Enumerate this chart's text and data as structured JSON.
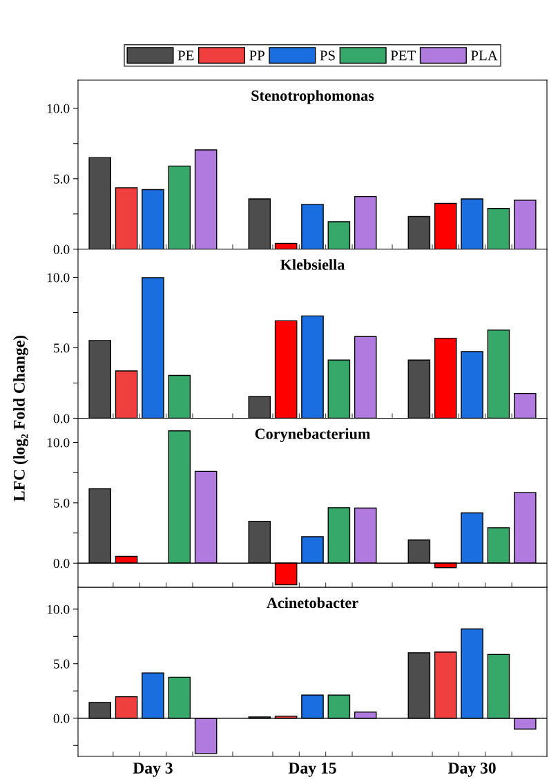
{
  "chart_data": [
    {
      "type": "bar",
      "title": "Stenotrophomonas",
      "ylabel": "LFC (log₂ Fold Change)",
      "categories": [
        null,
        null,
        null
      ],
      "ylim": [
        0,
        12
      ],
      "yticks": [
        {
          "value": 0,
          "label": "0.0"
        },
        {
          "value": 2.5,
          "label": null
        },
        {
          "value": 5,
          "label": "5.0"
        },
        {
          "value": 7.5,
          "label": null
        },
        {
          "value": 10,
          "label": "10.0"
        }
      ],
      "tick_labels": "y",
      "legend": "top",
      "grid": false,
      "series": [
        {
          "name": "PE",
          "color": "#4d4d4d",
          "values": [
            6.5,
            3.57,
            2.32
          ]
        },
        {
          "name": "PP",
          "color": "#ef3f3f",
          "colors": [
            "#ef3f3f",
            "#ff0000",
            "#ff0000"
          ],
          "values": [
            4.36,
            0.41,
            3.25
          ]
        },
        {
          "name": "PS",
          "color": "#1a6ee0",
          "values": [
            4.23,
            3.18,
            3.57
          ]
        },
        {
          "name": "PET",
          "color": "#36a86a",
          "values": [
            5.9,
            1.95,
            2.89
          ]
        },
        {
          "name": "PLA",
          "color": "#b07ade",
          "values": [
            7.05,
            3.73,
            3.48
          ]
        }
      ]
    },
    {
      "type": "bar",
      "title": "Klebsiella",
      "categories": [
        null,
        null,
        null
      ],
      "ylim": [
        0,
        12
      ],
      "yticks": [
        {
          "value": 0,
          "label": "0.0"
        },
        {
          "value": 2.5,
          "label": null
        },
        {
          "value": 5,
          "label": "5.0"
        },
        {
          "value": 7.5,
          "label": null
        },
        {
          "value": 10,
          "label": "10.0"
        }
      ],
      "tick_labels": "y",
      "grid": false,
      "series": [
        {
          "color": "#4d4d4d",
          "values": [
            5.52,
            1.55,
            4.13
          ]
        },
        {
          "color": "#ef3f3f",
          "colors": [
            "#ef3f3f",
            "#ff0000",
            "#ff0000"
          ],
          "values": [
            3.36,
            6.92,
            5.68
          ]
        },
        {
          "color": "#1a6ee0",
          "values": [
            9.98,
            7.26,
            4.73
          ]
        },
        {
          "color": "#36a86a",
          "values": [
            3.04,
            4.13,
            6.26
          ]
        },
        {
          "color": "#b07ade",
          "values": [
            null,
            5.8,
            1.76
          ]
        }
      ]
    },
    {
      "type": "bar",
      "title": "Corynebacterium",
      "categories": [
        null,
        null,
        null
      ],
      "ylim": [
        -2,
        12
      ],
      "yticks": [
        {
          "value": 0,
          "label": "0.0"
        },
        {
          "value": 2.5,
          "label": null
        },
        {
          "value": 5,
          "label": "5.0"
        },
        {
          "value": 7.5,
          "label": null
        },
        {
          "value": 10,
          "label": "10.0"
        }
      ],
      "tick_labels": "y",
      "grid": false,
      "ref_lines": [
        {
          "axis": "y",
          "value": 0,
          "color": "#000000"
        }
      ],
      "series": [
        {
          "color": "#4d4d4d",
          "values": [
            6.16,
            3.47,
            1.92
          ]
        },
        {
          "color": "#ef3f3f",
          "colors": [
            "#ff0000",
            "#ff0000",
            "#ff0000"
          ],
          "values": [
            0.56,
            -1.79,
            -0.37
          ]
        },
        {
          "color": "#1a6ee0",
          "values": [
            null,
            2.19,
            4.16
          ]
        },
        {
          "color": "#36a86a",
          "values": [
            10.96,
            4.59,
            2.93
          ]
        },
        {
          "color": "#b07ade",
          "values": [
            7.6,
            4.56,
            5.84
          ]
        }
      ]
    },
    {
      "type": "bar",
      "title": "Acinetobacter",
      "categories": [
        "Day 3",
        "Day 15",
        "Day 30"
      ],
      "ylim": [
        -3.5,
        12
      ],
      "yticks": [
        {
          "value": -2.5,
          "label": null
        },
        {
          "value": 0,
          "label": "0.0"
        },
        {
          "value": 2.5,
          "label": null
        },
        {
          "value": 5,
          "label": "5.0"
        },
        {
          "value": 7.5,
          "label": null
        },
        {
          "value": 10,
          "label": "10.0"
        }
      ],
      "grid": false,
      "ref_lines": [
        {
          "axis": "y",
          "value": 0,
          "color": "#000000"
        }
      ],
      "series": [
        {
          "color": "#4d4d4d",
          "values": [
            1.44,
            0.12,
            6.0
          ]
        },
        {
          "color": "#ef3f3f",
          "values": [
            1.97,
            0.18,
            6.06
          ]
        },
        {
          "color": "#1a6ee0",
          "values": [
            4.15,
            2.12,
            8.18
          ]
        },
        {
          "color": "#36a86a",
          "values": [
            3.76,
            2.12,
            5.85
          ]
        },
        {
          "color": "#b07ade",
          "values": [
            -3.24,
            0.56,
            -1.0
          ]
        }
      ]
    }
  ]
}
